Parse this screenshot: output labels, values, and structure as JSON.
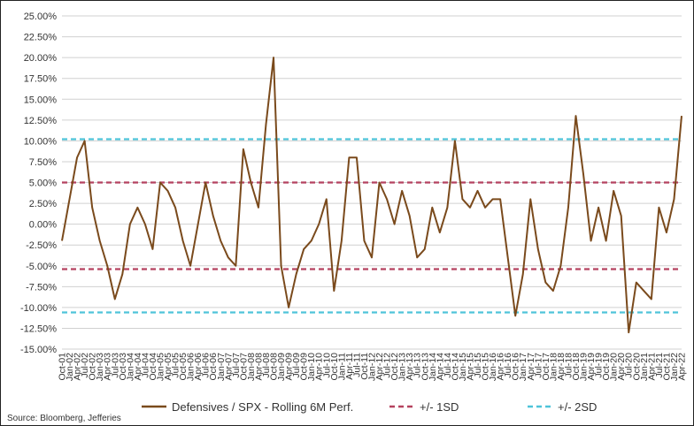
{
  "chart_data": {
    "type": "line",
    "categories": [
      "Oct-01",
      "Jan-02",
      "Apr-02",
      "Jul-02",
      "Oct-02",
      "Jan-03",
      "Apr-03",
      "Jul-03",
      "Oct-03",
      "Jan-04",
      "Apr-04",
      "Jul-04",
      "Oct-04",
      "Jan-05",
      "Apr-05",
      "Jul-05",
      "Oct-05",
      "Jan-06",
      "Apr-06",
      "Jul-06",
      "Oct-06",
      "Jan-07",
      "Apr-07",
      "Jul-07",
      "Oct-07",
      "Jan-08",
      "Apr-08",
      "Jul-08",
      "Oct-08",
      "Jan-09",
      "Apr-09",
      "Jul-09",
      "Oct-09",
      "Jan-10",
      "Apr-10",
      "Jul-10",
      "Oct-10",
      "Jan-11",
      "Apr-11",
      "Jul-11",
      "Oct-11",
      "Jan-12",
      "Apr-12",
      "Jul-12",
      "Oct-12",
      "Jan-13",
      "Apr-13",
      "Jul-13",
      "Oct-13",
      "Jan-14",
      "Apr-14",
      "Jul-14",
      "Oct-14",
      "Jan-15",
      "Apr-15",
      "Jul-15",
      "Oct-15",
      "Jan-16",
      "Apr-16",
      "Jul-16",
      "Oct-16",
      "Jan-17",
      "Apr-17",
      "Jul-17",
      "Oct-17",
      "Jan-18",
      "Apr-18",
      "Jul-18",
      "Oct-18",
      "Jan-19",
      "Apr-19",
      "Jul-19",
      "Oct-19",
      "Jan-20",
      "Apr-20",
      "Jul-20",
      "Oct-20",
      "Jan-21",
      "Apr-21",
      "Jul-21",
      "Oct-21",
      "Jan-22",
      "Apr-22"
    ],
    "series": [
      {
        "name": "Defensives / SPX - Rolling 6M Perf.",
        "color": "#7a4a1c",
        "values": [
          -2,
          3,
          8,
          10,
          2,
          -2,
          -5,
          -9,
          -6,
          0,
          2,
          0,
          -3,
          5,
          4,
          2,
          -2,
          -5,
          0,
          5,
          1,
          -2,
          -4,
          -5,
          9,
          5,
          2,
          12,
          20,
          -5,
          -10,
          -6,
          -3,
          -2,
          0,
          3,
          -8,
          -2,
          8,
          8,
          -2,
          -4,
          5,
          3,
          0,
          4,
          1,
          -4,
          -3,
          2,
          -1,
          2,
          10,
          3,
          2,
          4,
          2,
          3,
          3,
          -4,
          -11,
          -6,
          3,
          -3,
          -7,
          -8,
          -5,
          2,
          13,
          6,
          -2,
          2,
          -2,
          4,
          1,
          -13,
          -7,
          -8,
          -9,
          2,
          -1,
          3,
          13
        ]
      }
    ],
    "bands": [
      {
        "name": "+/- 1SD",
        "color": "#b5425f",
        "values": [
          5.0,
          -5.4
        ]
      },
      {
        "name": "+/- 2SD",
        "color": "#4fc4d9",
        "values": [
          10.2,
          -10.6
        ]
      }
    ],
    "ylim": [
      -15,
      25
    ],
    "yticks": [
      {
        "value": -15,
        "label": "-15.00%"
      },
      {
        "value": -12.5,
        "label": "-12.50%"
      },
      {
        "value": -10,
        "label": "-10.00%"
      },
      {
        "value": -7.5,
        "label": "-7.50%"
      },
      {
        "value": -5,
        "label": "-5.00%"
      },
      {
        "value": -2.5,
        "label": "-2.50%"
      },
      {
        "value": 0,
        "label": "0.00%"
      },
      {
        "value": 2.5,
        "label": "2.50%"
      },
      {
        "value": 5,
        "label": "5.00%"
      },
      {
        "value": 7.5,
        "label": "7.50%"
      },
      {
        "value": 10,
        "label": "10.00%"
      },
      {
        "value": 12.5,
        "label": "12.50%"
      },
      {
        "value": 15,
        "label": "15.00%"
      },
      {
        "value": 17.5,
        "label": "17.50%"
      },
      {
        "value": 20,
        "label": "20.00%"
      },
      {
        "value": 22.5,
        "label": "22.50%"
      },
      {
        "value": 25,
        "label": "25.00%"
      }
    ],
    "grid": true,
    "source": "Source: Bloomberg, Jefferies"
  }
}
